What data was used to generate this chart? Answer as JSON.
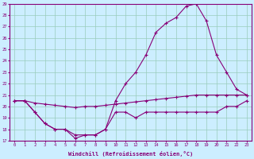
{
  "xlabel": "Windchill (Refroidissement éolien,°C)",
  "bg_color": "#cceeff",
  "grid_color": "#99ccbb",
  "line_color": "#880077",
  "xlim": [
    0,
    23
  ],
  "ylim": [
    17,
    29
  ],
  "yticks": [
    17,
    18,
    19,
    20,
    21,
    22,
    23,
    24,
    25,
    26,
    27,
    28,
    29
  ],
  "xticks": [
    0,
    1,
    2,
    3,
    4,
    5,
    6,
    7,
    8,
    9,
    10,
    11,
    12,
    13,
    14,
    15,
    16,
    17,
    18,
    19,
    20,
    21,
    22,
    23
  ],
  "series": [
    {
      "x": [
        0,
        1,
        2,
        3,
        4,
        5,
        6,
        7,
        8,
        9,
        10,
        11,
        12,
        13,
        14,
        15,
        16,
        17,
        18,
        19,
        20,
        21,
        22,
        23
      ],
      "y": [
        20.5,
        20.5,
        20.3,
        20.2,
        20.1,
        20.0,
        19.9,
        20.0,
        20.0,
        20.1,
        20.2,
        20.3,
        20.4,
        20.5,
        20.6,
        20.7,
        20.8,
        20.9,
        21.0,
        21.0,
        21.0,
        21.0,
        21.0,
        21.0
      ]
    },
    {
      "x": [
        0,
        1,
        2,
        3,
        4,
        5,
        6,
        7,
        8,
        9,
        10,
        11,
        12,
        13,
        14,
        15,
        16,
        17,
        18,
        19,
        20,
        21,
        22,
        23
      ],
      "y": [
        20.5,
        20.5,
        19.5,
        18.5,
        18.0,
        18.0,
        17.5,
        17.5,
        17.5,
        18.0,
        19.5,
        19.5,
        19.0,
        19.5,
        19.5,
        19.5,
        19.5,
        19.5,
        19.5,
        19.5,
        19.5,
        20.0,
        20.0,
        20.5
      ]
    },
    {
      "x": [
        0,
        1,
        2,
        3,
        4,
        5,
        6,
        7,
        8,
        9,
        10,
        11,
        12,
        13,
        14,
        15,
        16,
        17,
        18,
        19,
        20,
        21,
        22,
        23
      ],
      "y": [
        20.5,
        20.5,
        19.5,
        18.5,
        18.0,
        18.0,
        17.2,
        17.5,
        17.5,
        18.0,
        20.5,
        22.0,
        23.0,
        24.5,
        26.5,
        27.3,
        27.8,
        28.8,
        29.0,
        27.5,
        24.5,
        23.0,
        21.5,
        21.0
      ]
    }
  ]
}
